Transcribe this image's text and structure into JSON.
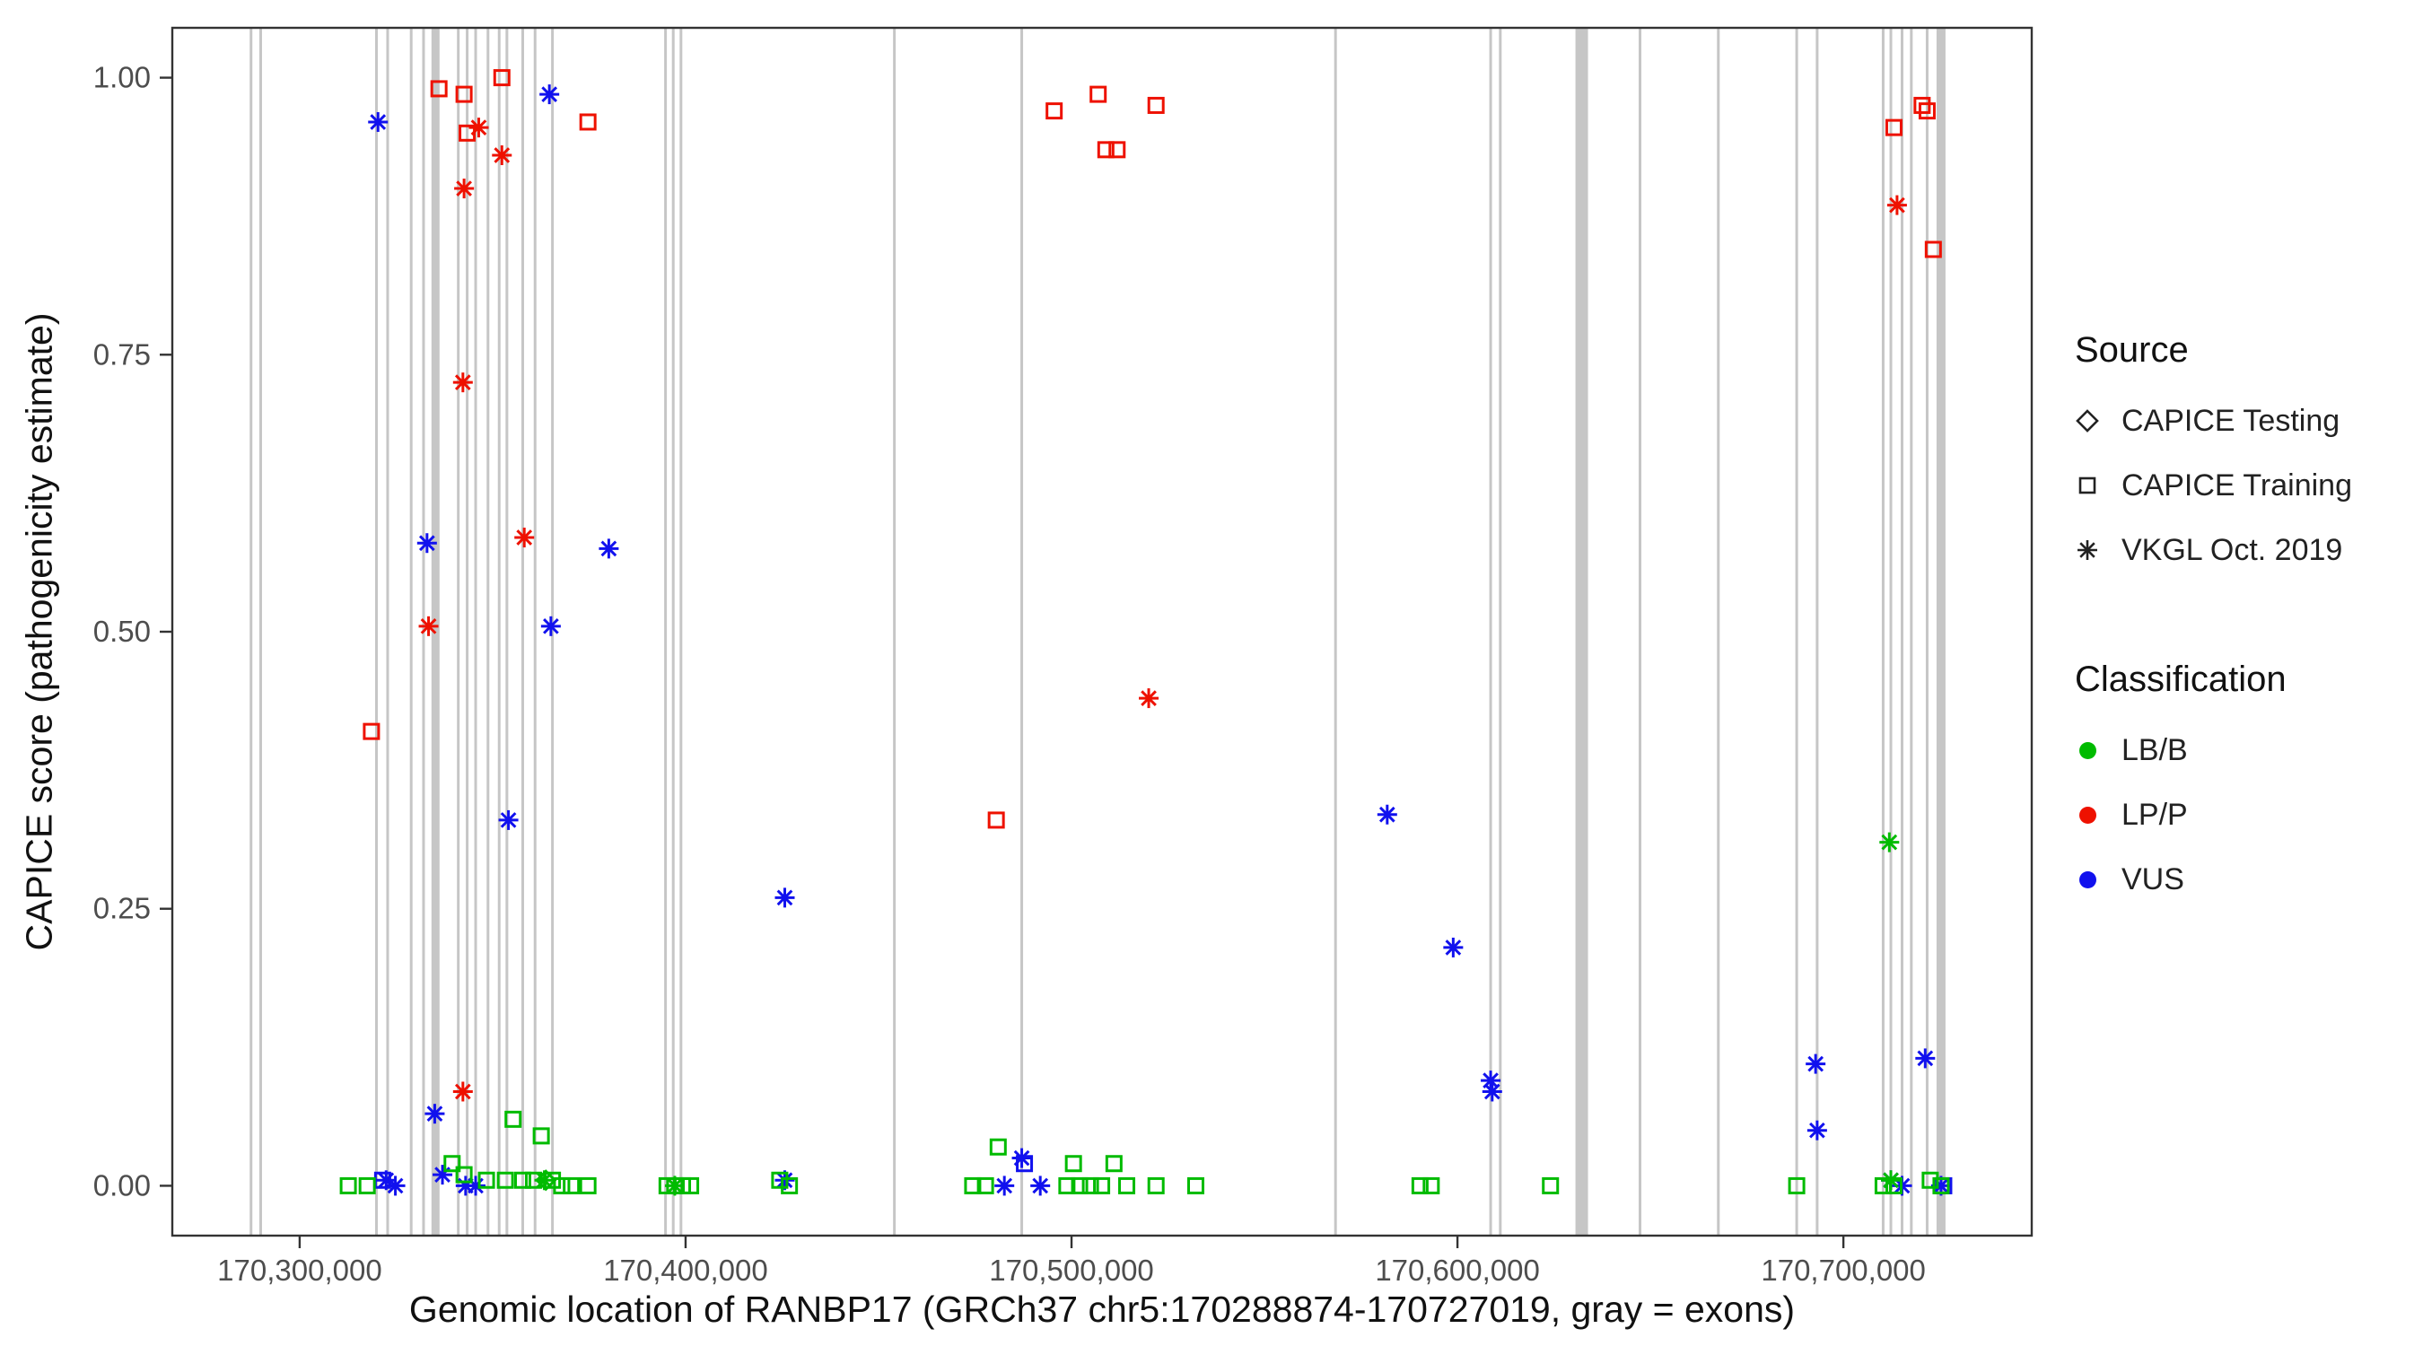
{
  "page": {
    "background": "#FFFFFF"
  },
  "legend": {
    "source": {
      "title": "Source",
      "items": [
        {
          "label": "CAPICE Testing",
          "shape": "diamond"
        },
        {
          "label": "CAPICE Training",
          "shape": "square"
        },
        {
          "label": "VKGL Oct. 2019",
          "shape": "asterisk"
        }
      ]
    },
    "classification": {
      "title": "Classification",
      "items": [
        {
          "label": "LB/B",
          "color": "#00BB00"
        },
        {
          "label": "LP/P",
          "color": "#EE1100"
        },
        {
          "label": "VUS",
          "color": "#1111EE"
        }
      ]
    }
  },
  "chart_data": {
    "type": "scatter",
    "title": "",
    "xlabel": "Genomic location of RANBP17 (GRCh37 chr5:170288874-170727019, gray = exons)",
    "ylabel": "CAPICE score (pathogenicity estimate)",
    "xlim": [
      170267000,
      170748800
    ],
    "ylim": [
      -0.045,
      1.045
    ],
    "grid": false,
    "legend_position": "right",
    "panel_border_color": "#333333",
    "tick_color": "#333333",
    "exon_color": "#C6C6C6",
    "x_ticks": [
      {
        "value": 170300000,
        "label": "170,300,000"
      },
      {
        "value": 170400000,
        "label": "170,400,000"
      },
      {
        "value": 170500000,
        "label": "170,500,000"
      },
      {
        "value": 170600000,
        "label": "170,600,000"
      },
      {
        "value": 170700000,
        "label": "170,700,000"
      }
    ],
    "y_ticks": [
      {
        "value": 0,
        "label": "0.00"
      },
      {
        "value": 0.25,
        "label": "0.25"
      },
      {
        "value": 0.5,
        "label": "0.50"
      },
      {
        "value": 0.75,
        "label": "0.75"
      },
      {
        "value": 1,
        "label": "1.00"
      }
    ],
    "exons": [
      {
        "pos": 170287400,
        "w": 3
      },
      {
        "pos": 170289900,
        "w": 3
      },
      {
        "pos": 170319900,
        "w": 3
      },
      {
        "pos": 170322800,
        "w": 3
      },
      {
        "pos": 170328900,
        "w": 3
      },
      {
        "pos": 170332100,
        "w": 3
      },
      {
        "pos": 170335200,
        "w": 9
      },
      {
        "pos": 170341100,
        "w": 3
      },
      {
        "pos": 170343400,
        "w": 3
      },
      {
        "pos": 170345600,
        "w": 3
      },
      {
        "pos": 170348800,
        "w": 3
      },
      {
        "pos": 170351700,
        "w": 3
      },
      {
        "pos": 170353700,
        "w": 3
      },
      {
        "pos": 170357800,
        "w": 3
      },
      {
        "pos": 170361000,
        "w": 3
      },
      {
        "pos": 170365500,
        "w": 3
      },
      {
        "pos": 170394800,
        "w": 3
      },
      {
        "pos": 170396800,
        "w": 3
      },
      {
        "pos": 170398800,
        "w": 3
      },
      {
        "pos": 170454100,
        "w": 3
      },
      {
        "pos": 170487100,
        "w": 3
      },
      {
        "pos": 170568400,
        "w": 3
      },
      {
        "pos": 170608600,
        "w": 3
      },
      {
        "pos": 170611100,
        "w": 3
      },
      {
        "pos": 170632200,
        "w": 14
      },
      {
        "pos": 170647300,
        "w": 3
      },
      {
        "pos": 170667600,
        "w": 3
      },
      {
        "pos": 170687900,
        "w": 3
      },
      {
        "pos": 170693200,
        "w": 3
      },
      {
        "pos": 170710300,
        "w": 3
      },
      {
        "pos": 170712300,
        "w": 3
      },
      {
        "pos": 170715200,
        "w": 3
      },
      {
        "pos": 170717600,
        "w": 3
      },
      {
        "pos": 170721700,
        "w": 3
      },
      {
        "pos": 170725300,
        "w": 10
      }
    ],
    "series": [
      {
        "source": "CAPICE Training",
        "classification": "LP/P",
        "shape": "square",
        "color": "#EE1100",
        "points": [
          [
            170318600,
            0.41
          ],
          [
            170336100,
            0.99
          ],
          [
            170342600,
            0.985
          ],
          [
            170343400,
            0.95
          ],
          [
            170352400,
            1.0
          ],
          [
            170374700,
            0.96
          ],
          [
            170480500,
            0.33
          ],
          [
            170495500,
            0.97
          ],
          [
            170506900,
            0.985
          ],
          [
            170508900,
            0.935
          ],
          [
            170511800,
            0.935
          ],
          [
            170521900,
            0.975
          ],
          [
            170713100,
            0.955
          ],
          [
            170720400,
            0.975
          ],
          [
            170721700,
            0.97
          ],
          [
            170723300,
            0.845
          ]
        ]
      },
      {
        "source": "VKGL Oct. 2019",
        "classification": "LP/P",
        "shape": "asterisk",
        "color": "#EE1100",
        "points": [
          [
            170346400,
            0.955
          ],
          [
            170342600,
            0.9
          ],
          [
            170352400,
            0.93
          ],
          [
            170342300,
            0.725
          ],
          [
            170358200,
            0.585
          ],
          [
            170333400,
            0.505
          ],
          [
            170342300,
            0.085
          ],
          [
            170520000,
            0.44
          ],
          [
            170713900,
            0.885
          ]
        ]
      },
      {
        "source": "VKGL Oct. 2019",
        "classification": "VUS",
        "shape": "asterisk",
        "color": "#1111EE",
        "points": [
          [
            170320300,
            0.96
          ],
          [
            170364700,
            0.985
          ],
          [
            170333000,
            0.58
          ],
          [
            170380100,
            0.575
          ],
          [
            170365100,
            0.505
          ],
          [
            170354100,
            0.33
          ],
          [
            170425700,
            0.26
          ],
          [
            170581800,
            0.335
          ],
          [
            170598900,
            0.215
          ],
          [
            170608600,
            0.095
          ],
          [
            170609000,
            0.085
          ],
          [
            170692800,
            0.11
          ],
          [
            170721200,
            0.115
          ],
          [
            170693200,
            0.05
          ],
          [
            170335000,
            0.065
          ],
          [
            170322400,
            0.005
          ],
          [
            170324800,
            0.0
          ],
          [
            170337000,
            0.01
          ],
          [
            170343000,
            0.0
          ],
          [
            170345600,
            0.0
          ],
          [
            170425700,
            0.005
          ],
          [
            170482600,
            0.0
          ],
          [
            170487100,
            0.025
          ],
          [
            170491900,
            0.0
          ],
          [
            170712300,
            0.005
          ],
          [
            170715200,
            0.0
          ],
          [
            170725300,
            0.0
          ]
        ]
      },
      {
        "source": "CAPICE Training",
        "classification": "VUS",
        "shape": "square",
        "color": "#1111EE",
        "points": [
          [
            170321500,
            0.005
          ],
          [
            170487800,
            0.02
          ],
          [
            170726000,
            0.0
          ]
        ]
      },
      {
        "source": "CAPICE Training",
        "classification": "LB/B",
        "shape": "square",
        "color": "#00BB00",
        "points": [
          [
            170312600,
            0
          ],
          [
            170317500,
            0
          ],
          [
            170339500,
            0.02
          ],
          [
            170342600,
            0.01
          ],
          [
            170348400,
            0.005
          ],
          [
            170353300,
            0.005
          ],
          [
            170355300,
            0.06
          ],
          [
            170357800,
            0.005
          ],
          [
            170360600,
            0.005
          ],
          [
            170362600,
            0.045
          ],
          [
            170365500,
            0.005
          ],
          [
            170367900,
            0
          ],
          [
            170370400,
            0
          ],
          [
            170374700,
            0
          ],
          [
            170395200,
            0
          ],
          [
            170397200,
            0
          ],
          [
            170399200,
            0
          ],
          [
            170401300,
            0
          ],
          [
            170424400,
            0.005
          ],
          [
            170426900,
            0
          ],
          [
            170474400,
            0
          ],
          [
            170477700,
            0
          ],
          [
            170481000,
            0.035
          ],
          [
            170498800,
            0
          ],
          [
            170500500,
            0.02
          ],
          [
            170502100,
            0
          ],
          [
            170504900,
            0
          ],
          [
            170507800,
            0
          ],
          [
            170511000,
            0.02
          ],
          [
            170514300,
            0
          ],
          [
            170521900,
            0
          ],
          [
            170532200,
            0
          ],
          [
            170590300,
            0
          ],
          [
            170593200,
            0
          ],
          [
            170624100,
            0
          ],
          [
            170687900,
            0
          ],
          [
            170710300,
            0
          ],
          [
            170713100,
            0
          ],
          [
            170722500,
            0.005
          ],
          [
            170725300,
            0
          ]
        ]
      },
      {
        "source": "VKGL Oct. 2019",
        "classification": "LB/B",
        "shape": "asterisk",
        "color": "#00BB00",
        "points": [
          [
            170711900,
            0.31
          ],
          [
            170363400,
            0.005
          ],
          [
            170397200,
            0.0
          ],
          [
            170712300,
            0.005
          ]
        ]
      },
      {
        "source": "CAPICE Testing",
        "classification": "LB/B",
        "shape": "diamond",
        "color": "#00BB00",
        "points": [
          [
            170363800,
            0.005
          ]
        ]
      }
    ]
  }
}
